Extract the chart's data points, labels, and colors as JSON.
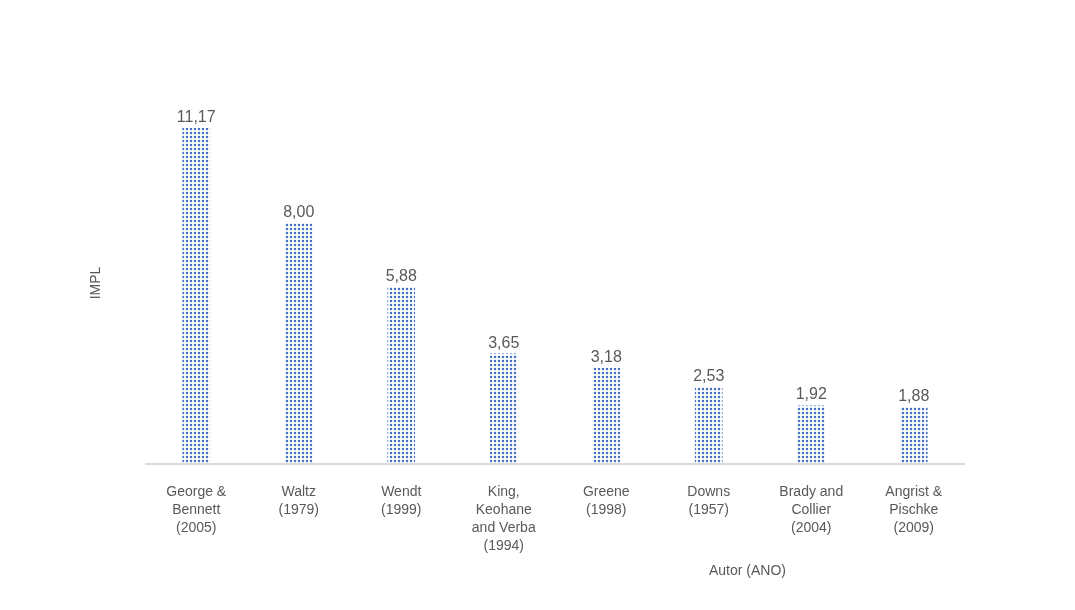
{
  "chart_data": {
    "type": "bar",
    "xlabel": "Autor (ANO)",
    "ylabel": "IMPL",
    "categories": [
      "George & Bennett (2005)",
      "Waltz (1979)",
      "Wendt (1999)",
      "King, Keohane and Verba (1994)",
      "Greene (1998)",
      "Downs (1957)",
      "Brady and Collier (2004)",
      "Angrist & Pischke (2009)"
    ],
    "values": [
      11.17,
      8.0,
      5.88,
      3.65,
      3.18,
      2.53,
      1.92,
      1.88
    ],
    "value_labels": [
      "11,17",
      "8,00",
      "5,88",
      "3,65",
      "3,18",
      "2,53",
      "1,92",
      "1,88"
    ],
    "color": "#4472c4"
  }
}
